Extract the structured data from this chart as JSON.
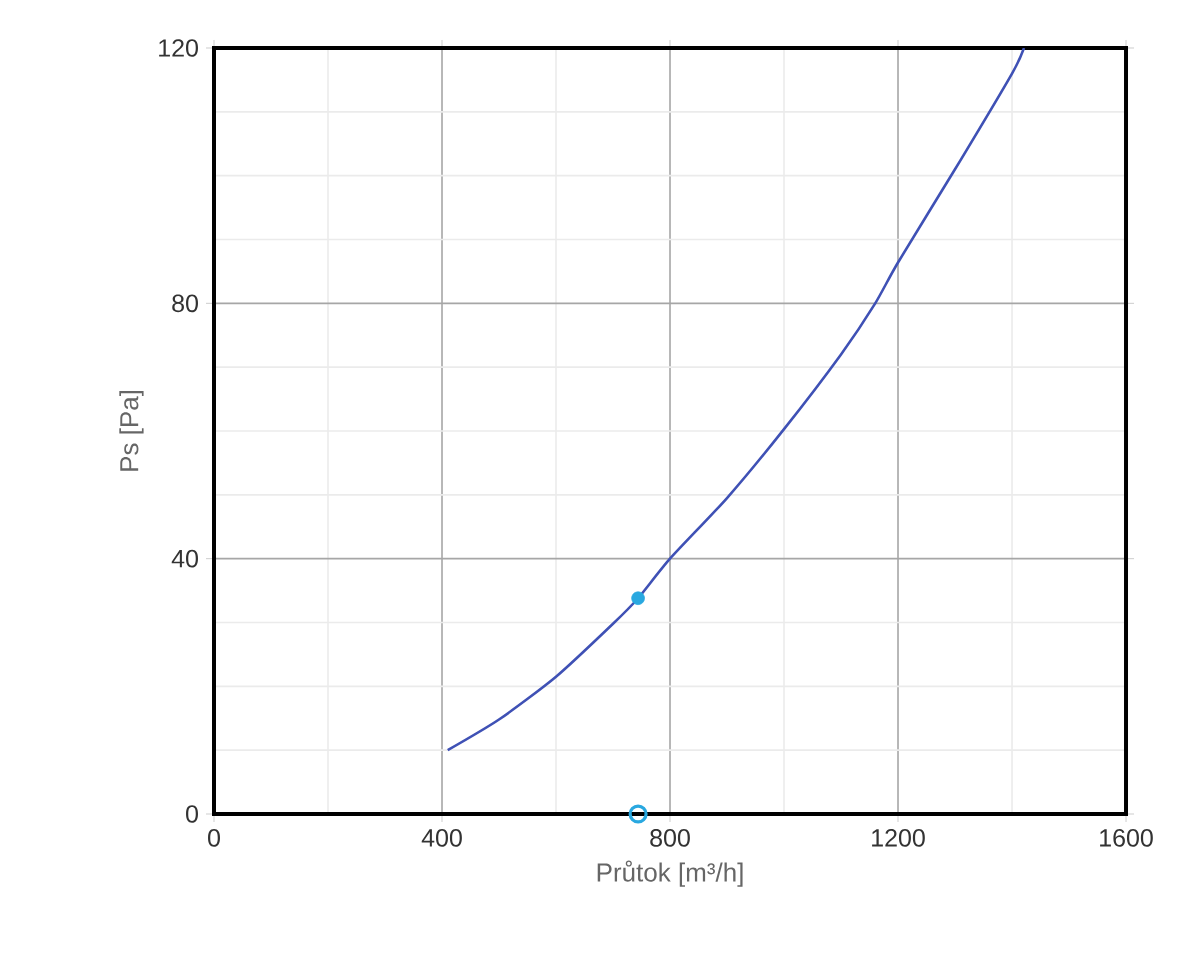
{
  "chart_data": {
    "type": "line",
    "xlabel": "Průtok [m³/h]",
    "ylabel": "Ps [Pa]",
    "xlim": [
      0,
      1600
    ],
    "ylim": [
      0,
      120
    ],
    "xticks": [
      0,
      400,
      800,
      1200,
      1600
    ],
    "yticks": [
      0,
      40,
      80,
      120
    ],
    "grid": true,
    "series": [
      {
        "color": "#3f51b5",
        "marker": "none",
        "x": [
          410,
          500,
          600,
          700,
          744,
          800,
          900,
          1000,
          1100,
          1160,
          1200,
          1300,
          1400,
          1421
        ],
        "values": [
          10,
          14.8,
          21.5,
          29.8,
          33.8,
          40,
          49.5,
          60.3,
          72,
          80,
          86.4,
          101,
          116,
          120
        ]
      },
      {
        "type": "scatter",
        "color": "#29a8e0",
        "marker": "circle",
        "x": [
          744
        ],
        "values": [
          33.8
        ]
      },
      {
        "type": "scatter",
        "color": "#29a8e0",
        "marker": "circle-open",
        "x": [
          744
        ],
        "values": [
          0
        ]
      }
    ]
  }
}
